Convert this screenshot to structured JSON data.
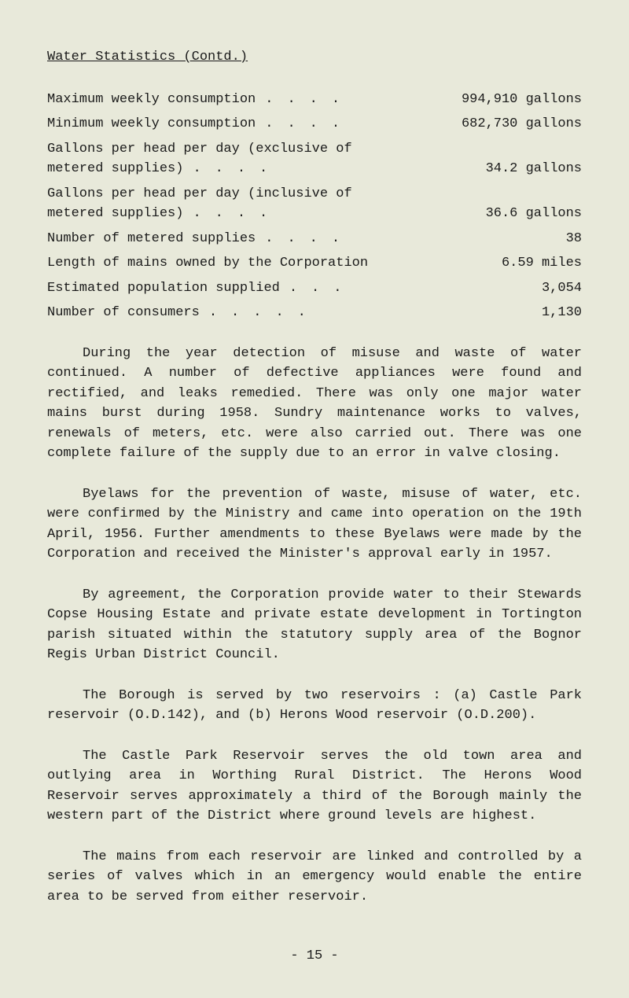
{
  "title": "Water Statistics (Contd.)",
  "stats": {
    "max_weekly": {
      "label": "Maximum weekly consumption",
      "value": "994,910 gallons"
    },
    "min_weekly": {
      "label": "Minimum weekly consumption",
      "value": "682,730 gallons"
    },
    "per_head_excl_line1": "Gallons per head per day (exclusive of",
    "per_head_excl_line2": "metered supplies)",
    "per_head_excl_value": "34.2 gallons",
    "per_head_incl_line1": "Gallons per head per day (inclusive of",
    "per_head_incl_line2": "metered supplies)",
    "per_head_incl_value": "36.6 gallons",
    "metered": {
      "label": "Number of metered supplies",
      "value": "38"
    },
    "mains": {
      "label": "Length of mains owned by the Corporation",
      "value": "6.59 miles"
    },
    "population": {
      "label": "Estimated population supplied",
      "value": "3,054"
    },
    "consumers": {
      "label": "Number of consumers",
      "value": "1,130"
    }
  },
  "paragraphs": {
    "p1": "During the year detection of misuse and waste of water continued. A number of defective appliances were found and rectified, and leaks remedied. There was only one major water mains burst during 1958. Sundry maintenance works to valves, renewals of meters, etc. were also carried out. There was one complete failure of the supply due to an error in valve closing.",
    "p2": "Byelaws for the prevention of waste, misuse of water, etc. were confirmed by the Ministry and came into operation on the 19th April, 1956. Further amendments to these Byelaws were made by the Corporation and received the Minister's approval early in 1957.",
    "p3": "By agreement, the Corporation provide water to their Stewards Copse Housing Estate and private estate development in Tortington parish situated within the statutory supply area of the Bognor Regis Urban District Council.",
    "p4": "The Borough is served by two reservoirs : (a) Castle Park reservoir (O.D.142), and (b) Herons Wood reservoir (O.D.200).",
    "p5": "The Castle Park Reservoir serves the old town area and outlying area in Worthing Rural District. The Herons Wood Reservoir serves approximately a third of the Borough mainly the western part of the District where ground levels are highest.",
    "p6": "The mains from each reservoir are linked and controlled by a series of valves which in an emergency would enable the entire area to be served from either reservoir."
  },
  "page_number": "- 15 -"
}
